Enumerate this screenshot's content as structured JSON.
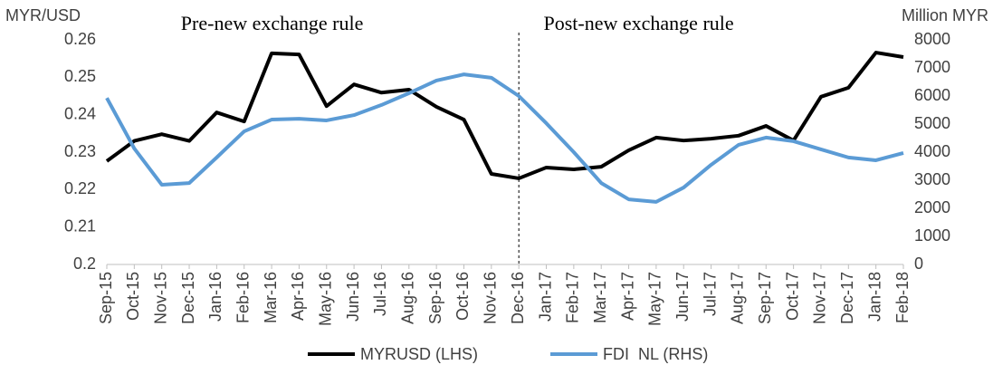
{
  "chart_data": {
    "type": "line",
    "y_label": "MYR/USD",
    "y2_label": "Million MYR",
    "annotations": [
      "Pre-new exchange rule",
      "Post-new exchange rule"
    ],
    "divider": "Dec-16",
    "categories": [
      "Sep-15",
      "Oct-15",
      "Nov-15",
      "Dec-15",
      "Jan-16",
      "Feb-16",
      "Mar-16",
      "Apr-16",
      "May-16",
      "Jun-16",
      "Jul-16",
      "Aug-16",
      "Sep-16",
      "Oct-16",
      "Nov-16",
      "Dec-16",
      "Jan-17",
      "Feb-17",
      "Mar-17",
      "Apr-17",
      "May-17",
      "Jun-17",
      "Jul-17",
      "Aug-17",
      "Sep-17",
      "Oct-17",
      "Nov-17",
      "Dec-17",
      "Jan-18",
      "Feb-18"
    ],
    "series": [
      {
        "name": "MYRUSD (LHS)",
        "color": "#000000",
        "axis": "y",
        "values": [
          0.2276,
          0.233,
          0.2348,
          0.233,
          0.2406,
          0.2382,
          0.2564,
          0.2561,
          0.2423,
          0.2481,
          0.2459,
          0.2467,
          0.2421,
          0.2387,
          0.2242,
          0.223,
          0.2259,
          0.2254,
          0.2261,
          0.2305,
          0.2339,
          0.2331,
          0.2336,
          0.2344,
          0.237,
          0.2331,
          0.2448,
          0.2472,
          0.2566,
          0.2554
        ]
      },
      {
        "name": "FDI  NL (RHS)",
        "color": "#5b9bd5",
        "axis": "y2",
        "values": [
          5930,
          4130,
          2840,
          2900,
          3810,
          4740,
          5160,
          5190,
          5130,
          5320,
          5680,
          6100,
          6550,
          6770,
          6650,
          6000,
          5030,
          4000,
          2900,
          2320,
          2230,
          2740,
          3550,
          4260,
          4520,
          4390,
          4100,
          3810,
          3710,
          3970
        ]
      }
    ],
    "ylim": [
      0.2,
      0.26
    ],
    "yticks": [
      0.2,
      0.21,
      0.22,
      0.23,
      0.24,
      0.25,
      0.26
    ],
    "y2lim": [
      0,
      8000
    ],
    "y2ticks": [
      0,
      1000,
      2000,
      3000,
      4000,
      5000,
      6000,
      7000,
      8000
    ],
    "grid": false
  }
}
